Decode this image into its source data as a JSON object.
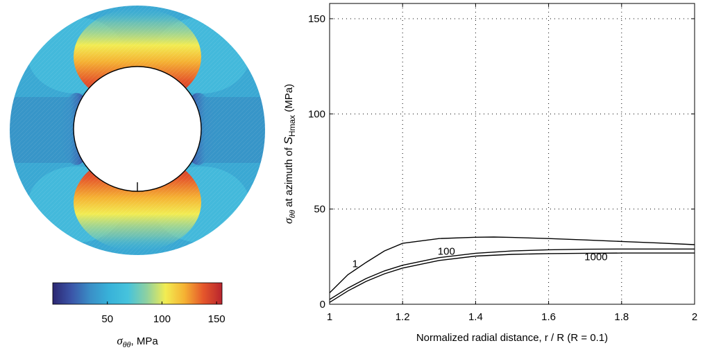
{
  "chart_data": [
    {
      "type": "heatmap",
      "colorbar": {
        "label_main": "σ",
        "label_sub": "θθ",
        "label_rest": ", MPa",
        "range": [
          0,
          155
        ],
        "ticks": [
          50,
          100,
          150
        ],
        "colormap": [
          "#2c2772",
          "#3b55a8",
          "#3a8fc7",
          "#38b2d9",
          "#46c3dc",
          "#8fd1a0",
          "#f2ec52",
          "#f5b233",
          "#e5572b",
          "#b8242e"
        ]
      },
      "stress_min_azimuth": "left-right",
      "stress_max_azimuth": "top-bottom"
    },
    {
      "type": "line",
      "xlabel": "Normalized radial distance,  r / R   (R = 0.1)",
      "ylabel_parts": {
        "a": "σ",
        "a_sub": "θθ",
        "b": " at azimuth of ",
        "c": "S",
        "c_sub": "Hmax",
        "d": " (MPa)"
      },
      "xlim": [
        1,
        2
      ],
      "ylim": [
        0,
        158
      ],
      "xticks": [
        "1",
        "1.2",
        "1.4",
        "1.6",
        "1.8",
        "2"
      ],
      "yticks": [
        "0",
        "50",
        "100",
        "150"
      ],
      "grid": true,
      "series": [
        {
          "name": "1",
          "x": [
            1.0,
            1.05,
            1.1,
            1.15,
            1.2,
            1.3,
            1.4,
            1.45,
            1.5,
            1.6,
            1.7,
            1.8,
            1.9,
            2.0
          ],
          "y": [
            6,
            15.5,
            22,
            28,
            32,
            34.5,
            35.2,
            35.3,
            35.1,
            34.5,
            33.8,
            33,
            32.2,
            31.3
          ]
        },
        {
          "name": "100",
          "x": [
            1.0,
            1.05,
            1.1,
            1.15,
            1.2,
            1.3,
            1.4,
            1.5,
            1.6,
            1.7,
            1.8,
            1.9,
            2.0
          ],
          "y": [
            2.5,
            8.5,
            13.5,
            17.5,
            20.5,
            24.5,
            26.8,
            28,
            28.6,
            28.9,
            29,
            29,
            29
          ]
        },
        {
          "name": "1000",
          "x": [
            1.0,
            1.05,
            1.1,
            1.15,
            1.2,
            1.3,
            1.4,
            1.5,
            1.6,
            1.7,
            1.8,
            1.9,
            2.0
          ],
          "y": [
            1,
            7,
            12,
            16,
            19,
            23,
            25.3,
            26.2,
            26.6,
            26.8,
            26.9,
            26.9,
            26.9
          ]
        }
      ],
      "curve_labels": [
        "1",
        "100",
        "1000"
      ]
    }
  ]
}
